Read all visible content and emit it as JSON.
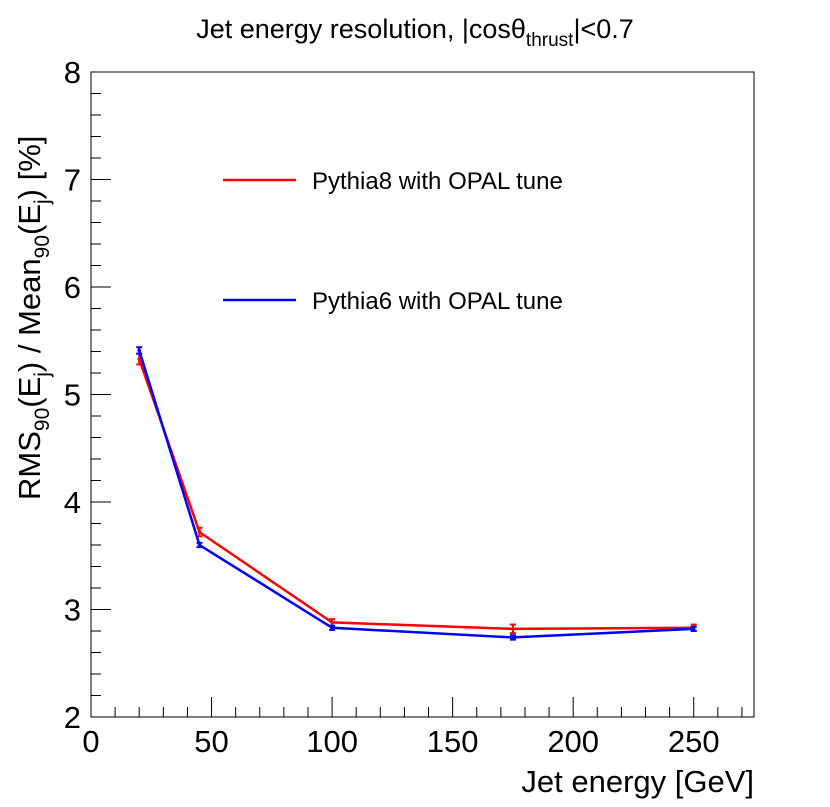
{
  "chart_data": {
    "type": "line",
    "title": {
      "main": "Jet energy resolution, |cosθ",
      "sub": "thrust",
      "tail": "|<0.7"
    },
    "xlabel": "Jet energy [GeV]",
    "ylabel": {
      "p1": "RMS",
      "s1": "90",
      "p2": "(E",
      "s2": "j",
      "p3": ") / Mean",
      "s3": "90",
      "p4": "(E",
      "s4": "j",
      "p5": ") [%]"
    },
    "xlim": [
      0,
      275
    ],
    "ylim": [
      2,
      8
    ],
    "x_ticks": [
      0,
      50,
      100,
      150,
      200,
      250
    ],
    "x_tick_labels": [
      "0",
      "50",
      "100",
      "150",
      "200",
      "250"
    ],
    "y_ticks": [
      2,
      3,
      4,
      5,
      6,
      7,
      8
    ],
    "y_tick_labels": [
      "2",
      "3",
      "4",
      "5",
      "6",
      "7",
      "8"
    ],
    "x": [
      20,
      45,
      100,
      175,
      250
    ],
    "series": [
      {
        "name": "Pythia8 with OPAL tune",
        "color": "#ff0000",
        "values": [
          5.33,
          3.72,
          2.88,
          2.82,
          2.83
        ],
        "errors": [
          0.05,
          0.04,
          0.03,
          0.04,
          0.03
        ]
      },
      {
        "name": "Pythia6 with OPAL tune",
        "color": "#0000ff",
        "values": [
          5.41,
          3.6,
          2.83,
          2.74,
          2.82
        ],
        "errors": [
          0.03,
          0.02,
          0.02,
          0.02,
          0.02
        ]
      }
    ],
    "legend": "upper-center"
  }
}
